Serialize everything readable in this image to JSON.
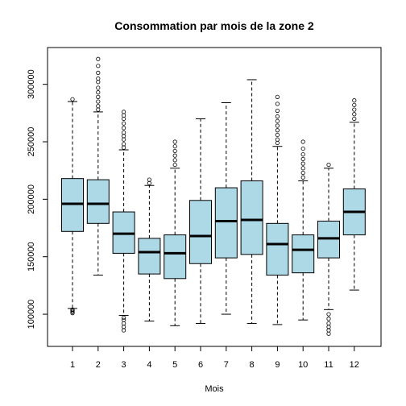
{
  "chart_data": {
    "type": "boxplot",
    "title": "Consommation par mois de la zone 2",
    "xlabel": "Mois",
    "ylabel": "",
    "categories": [
      "1",
      "2",
      "3",
      "4",
      "5",
      "6",
      "7",
      "8",
      "9",
      "10",
      "11",
      "12"
    ],
    "yticks": [
      100000,
      150000,
      200000,
      250000,
      300000
    ],
    "ytick_labels": [
      "100000",
      "150000",
      "200000",
      "250000",
      "300000"
    ],
    "ylim": [
      72000,
      332000
    ],
    "box_color": "#add8e6",
    "grid": false,
    "boxes": [
      {
        "label": "1",
        "whisker_low": 105000,
        "q1": 172000,
        "median": 196000,
        "q3": 218000,
        "whisker_high": 285000,
        "outliers": [
          101000,
          102000,
          104000,
          103000,
          287000
        ]
      },
      {
        "label": "2",
        "whisker_low": 134000,
        "q1": 179000,
        "median": 196000,
        "q3": 217000,
        "whisker_high": 276000,
        "outliers": [
          278000,
          281000,
          285000,
          289000,
          293000,
          297000,
          302000,
          305000,
          310000,
          316000,
          322000
        ]
      },
      {
        "label": "3",
        "whisker_low": 99000,
        "q1": 153000,
        "median": 170000,
        "q3": 189000,
        "whisker_high": 243000,
        "outliers": [
          86000,
          89000,
          92000,
          95000,
          97000,
          245000,
          248000,
          252000,
          255000,
          258000,
          262000,
          266000,
          270000,
          273000,
          276000
        ]
      },
      {
        "label": "4",
        "whisker_low": 94000,
        "q1": 135000,
        "median": 154000,
        "q3": 166000,
        "whisker_high": 212000,
        "outliers": [
          214000,
          217000
        ]
      },
      {
        "label": "5",
        "whisker_low": 90000,
        "q1": 131000,
        "median": 153000,
        "q3": 169000,
        "whisker_high": 227000,
        "outliers": [
          230000,
          234000,
          238000,
          242000,
          246000,
          250000
        ]
      },
      {
        "label": "6",
        "whisker_low": 92000,
        "q1": 144000,
        "median": 168000,
        "q3": 199000,
        "whisker_high": 270000,
        "outliers": []
      },
      {
        "label": "7",
        "whisker_low": 100000,
        "q1": 149000,
        "median": 181000,
        "q3": 210000,
        "whisker_high": 284000,
        "outliers": []
      },
      {
        "label": "8",
        "whisker_low": 92000,
        "q1": 152000,
        "median": 182000,
        "q3": 216000,
        "whisker_high": 304000,
        "outliers": []
      },
      {
        "label": "9",
        "whisker_low": 91000,
        "q1": 134000,
        "median": 161000,
        "q3": 179000,
        "whisker_high": 246000,
        "outliers": [
          249000,
          252000,
          256000,
          260000,
          264000,
          268000,
          272000,
          277000,
          283000,
          289000
        ]
      },
      {
        "label": "10",
        "whisker_low": 95000,
        "q1": 136000,
        "median": 156000,
        "q3": 169000,
        "whisker_high": 216000,
        "outliers": [
          219000,
          223000,
          227000,
          231000,
          235000,
          239000,
          244000,
          250000
        ]
      },
      {
        "label": "11",
        "whisker_low": 104000,
        "q1": 149000,
        "median": 166000,
        "q3": 181000,
        "whisker_high": 227000,
        "outliers": [
          83000,
          86000,
          89000,
          92000,
          96000,
          100000,
          230000
        ]
      },
      {
        "label": "12",
        "whisker_low": 121000,
        "q1": 169000,
        "median": 189000,
        "q3": 209000,
        "whisker_high": 267000,
        "outliers": [
          270000,
          274000,
          278000,
          282000,
          286000
        ]
      }
    ]
  }
}
